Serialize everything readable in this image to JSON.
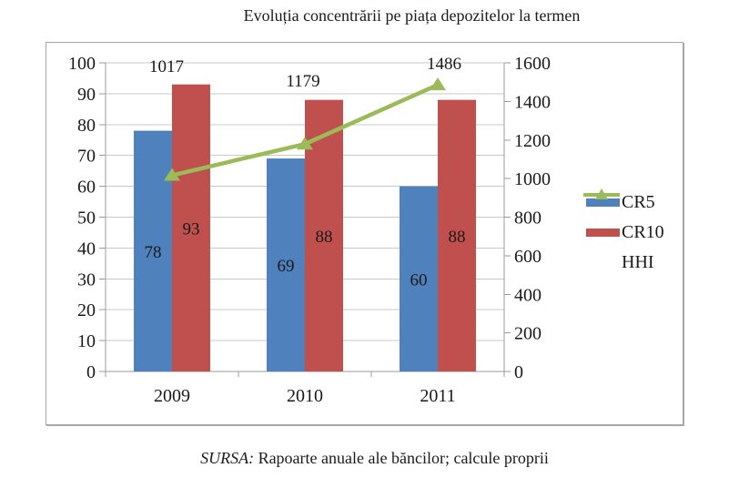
{
  "title": "Evoluția concentrării pe piața depozitelor la termen",
  "source": {
    "prefix": "SURSA:",
    "text": " Rapoarte anuale ale băncilor; calcule proprii"
  },
  "chart_data": {
    "type": "bar",
    "subtype": "grouped bars with overlaid line, dual y-axes",
    "title": "Evoluția concentrării pe piața depozitelor la termen",
    "categories": [
      "2009",
      "2010",
      "2011"
    ],
    "series": [
      {
        "name": "CR5",
        "type": "bar",
        "axis": "left",
        "color": "#4F81BD",
        "values": [
          78,
          69,
          60
        ]
      },
      {
        "name": "CR10",
        "type": "bar",
        "axis": "left",
        "color": "#C0504D",
        "values": [
          93,
          88,
          88
        ]
      },
      {
        "name": "HHI",
        "type": "line",
        "axis": "right",
        "color": "#9BBB59",
        "marker": "triangle",
        "values": [
          1017,
          1179,
          1486
        ]
      }
    ],
    "axes": {
      "left": {
        "min": 0,
        "max": 100,
        "step": 10
      },
      "right": {
        "min": 0,
        "max": 1600,
        "step": 200
      }
    },
    "grid": true,
    "data_labels": true,
    "legend_position": "right"
  }
}
